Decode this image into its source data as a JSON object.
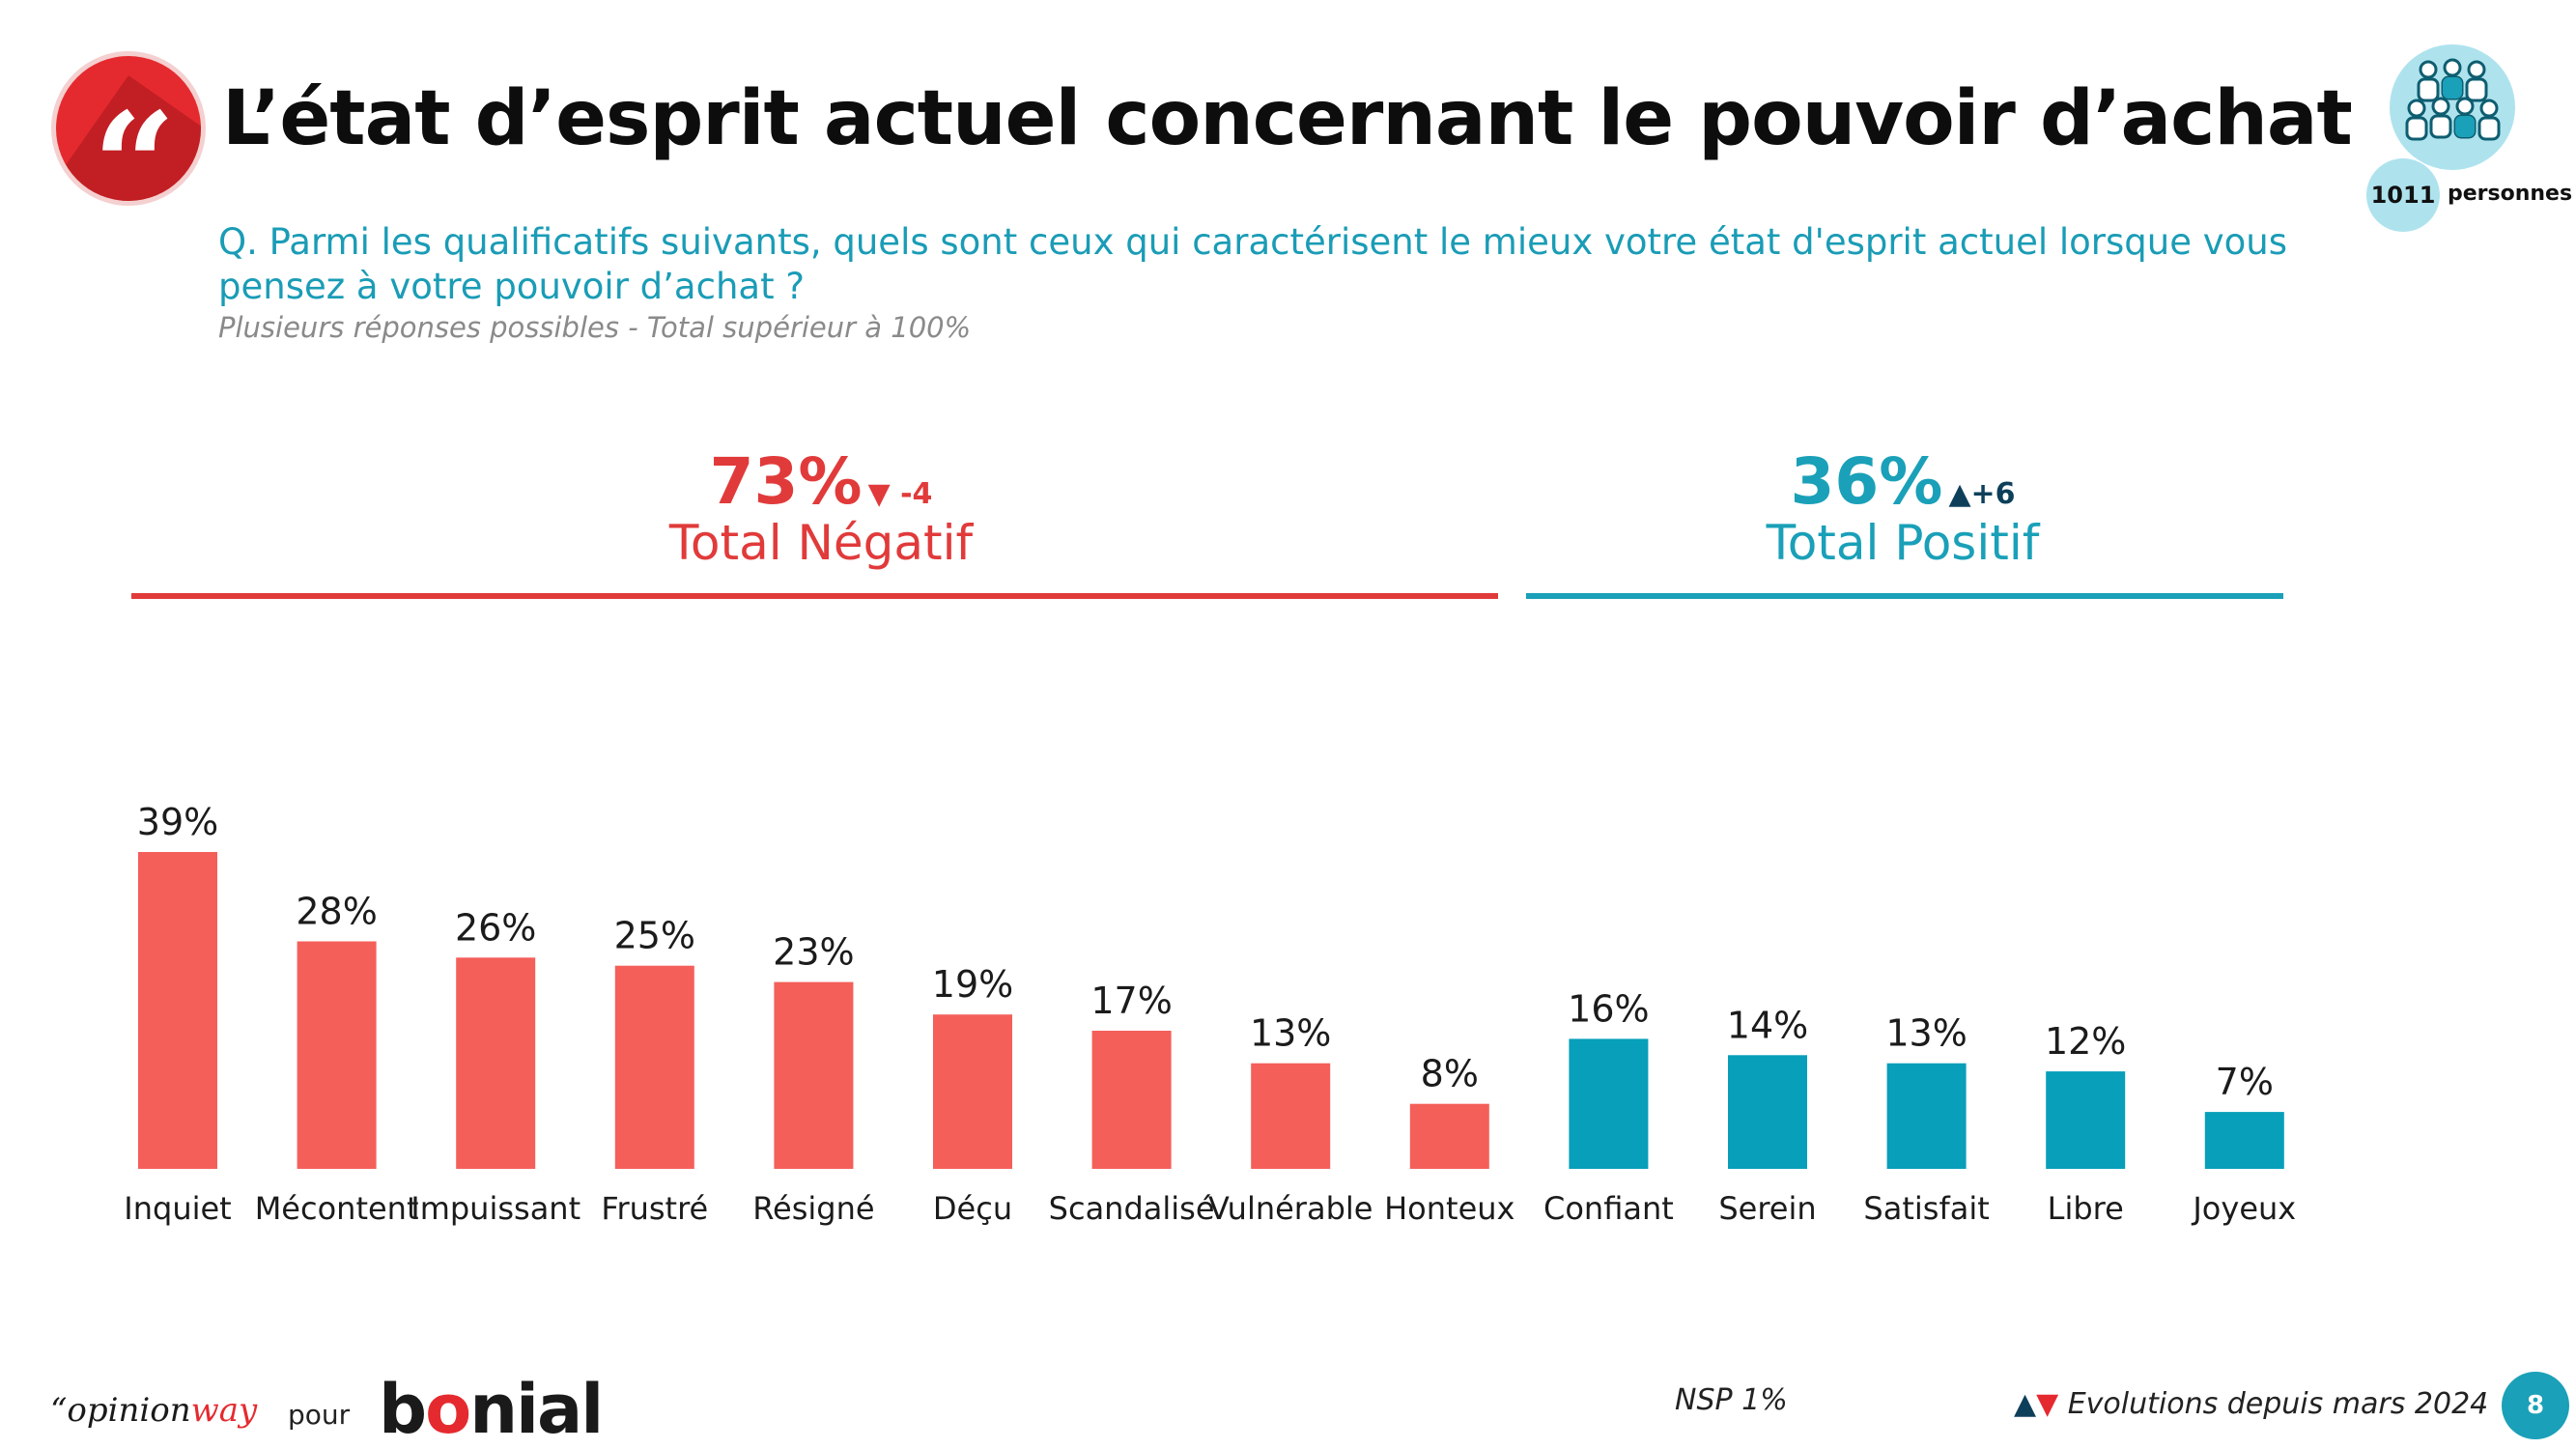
{
  "header": {
    "title": "L’état d’esprit actuel concernant le pouvoir d’achat",
    "question": "Q. Parmi les qualificatifs suivants, quels sont ceux qui caractérisent le mieux votre état d'esprit actuel lorsque vous pensez à votre pouvoir d’achat ?",
    "note": "Plusieurs réponses possibles - Total supérieur à 100%",
    "sample_count": "1011",
    "sample_label": "personnes",
    "quote_glyph": "“"
  },
  "groups": {
    "negative": {
      "value": "73%",
      "delta": "▼ -4",
      "label": "Total Négatif",
      "color": "#e13a3a"
    },
    "positive": {
      "value": "36%",
      "delta": "▲+6",
      "label": "Total Positif",
      "color": "#1aa0b8"
    }
  },
  "chart_data": {
    "type": "bar",
    "categories": [
      "Inquiet",
      "Mécontent",
      "Impuissant",
      "Frustré",
      "Résigné",
      "Déçu",
      "Scandalisé",
      "Vulnérable",
      "Honteux",
      "Confiant",
      "Serein",
      "Satisfait",
      "Libre",
      "Joyeux"
    ],
    "values": [
      39,
      28,
      26,
      25,
      23,
      19,
      17,
      13,
      8,
      16,
      14,
      13,
      12,
      7
    ],
    "value_labels": [
      "39%",
      "28%",
      "26%",
      "25%",
      "23%",
      "19%",
      "17%",
      "13%",
      "8%",
      "16%",
      "14%",
      "13%",
      "12%",
      "7%"
    ],
    "groups": [
      "negative",
      "negative",
      "negative",
      "negative",
      "negative",
      "negative",
      "negative",
      "negative",
      "negative",
      "positive",
      "positive",
      "positive",
      "positive",
      "positive"
    ],
    "colors": {
      "negative": "#f45f5a",
      "positive": "#079fba"
    },
    "ylim": [
      0,
      39
    ],
    "grid": false,
    "legend": "none"
  },
  "footer": {
    "logo_left": "“opinion",
    "logo_right": "way",
    "pour": "pour",
    "brand_a": "b",
    "brand_o": "o",
    "brand_b": "nial",
    "nsp": "NSP 1%",
    "evolution_up": "▲",
    "evolution_down": "▼",
    "evolution": "Evolutions depuis mars 2024",
    "page": "8"
  }
}
